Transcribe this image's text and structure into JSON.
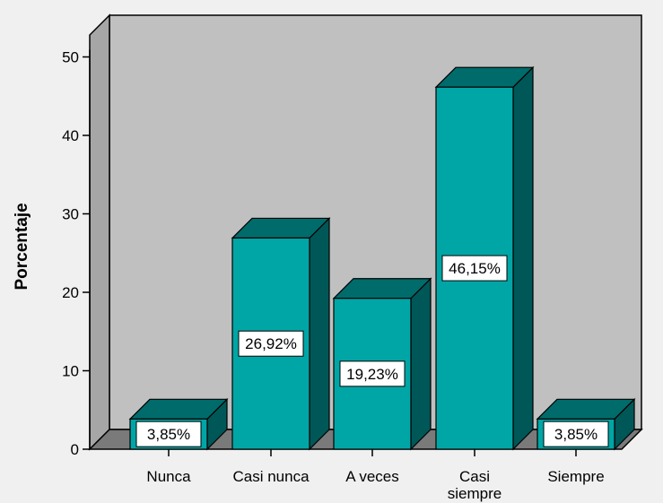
{
  "chart_data": {
    "type": "bar",
    "categories": [
      "Nunca",
      "Casi nunca",
      "A veces",
      "Casi siempre",
      "Siempre"
    ],
    "category_lines": [
      [
        "Nunca"
      ],
      [
        "Casi nunca"
      ],
      [
        "A veces"
      ],
      [
        "Casi",
        "siempre"
      ],
      [
        "Siempre"
      ]
    ],
    "values": [
      3.85,
      26.92,
      19.23,
      46.15,
      3.85
    ],
    "data_labels": [
      "3,85%",
      "26,92%",
      "19,23%",
      "46,15%",
      "3,85%"
    ],
    "ylabel": "Porcentaje",
    "ylim": [
      0,
      50
    ],
    "yticks": [
      0,
      10,
      20,
      30,
      40,
      50
    ],
    "three_d": true,
    "colors": {
      "bar_front": "#00a6a6",
      "bar_top": "#006b6b",
      "bar_side": "#005757",
      "back_wall": "#c0c0c0",
      "side_wall": "#a6a6a6",
      "floor": "#7a7a7a",
      "background": "#f0f0f0"
    }
  }
}
